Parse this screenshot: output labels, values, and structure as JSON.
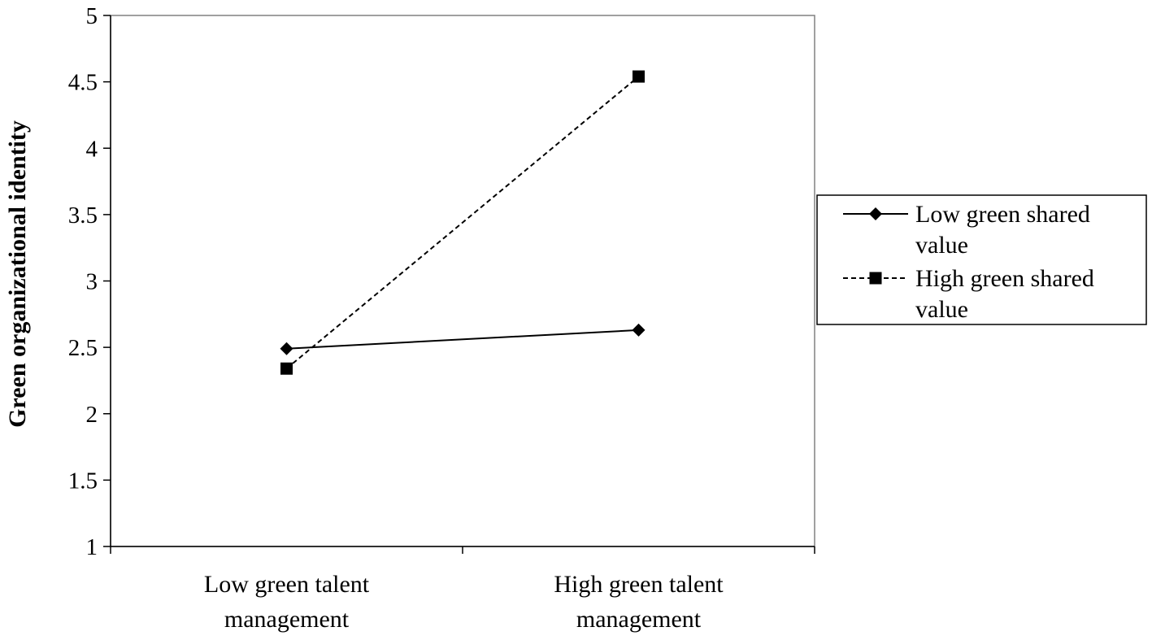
{
  "chart_data": {
    "type": "line",
    "title": "",
    "xlabel": "",
    "ylabel": "Green organizational identity",
    "categories": [
      [
        "Low green talent",
        "management"
      ],
      [
        "High green talent",
        "management"
      ]
    ],
    "ylim": [
      1,
      5
    ],
    "yticks": [
      "1",
      "1.5",
      "2",
      "2.5",
      "3",
      "3.5",
      "4",
      "4.5",
      "5"
    ],
    "grid": false,
    "legend_position": "right",
    "series": [
      {
        "name": [
          "Low green shared",
          "value"
        ],
        "values": [
          2.49,
          2.63
        ],
        "line_style": "solid",
        "marker": "diamond",
        "color": "#000000"
      },
      {
        "name": [
          "High green shared",
          "value"
        ],
        "values": [
          2.34,
          4.54
        ],
        "line_style": "dashed",
        "marker": "square",
        "color": "#000000"
      }
    ]
  }
}
